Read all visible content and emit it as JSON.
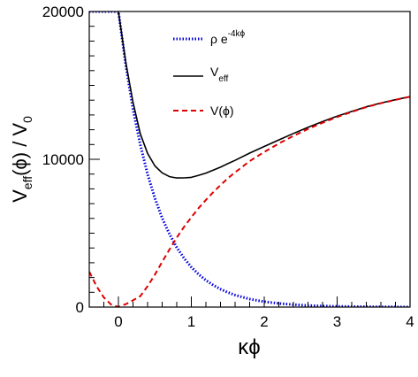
{
  "chart_data": {
    "type": "line",
    "xlabel": "κϕ",
    "ylabel": "V_eff(ϕ) / V_0",
    "xlim": [
      -0.4,
      4.0
    ],
    "ylim": [
      0,
      20000
    ],
    "x_ticks": [
      "0",
      "1",
      "2",
      "3",
      "4"
    ],
    "y_ticks": [
      "0",
      "10000",
      "20000"
    ],
    "grid": false,
    "legend_placement": "top-center",
    "series": [
      {
        "name": "ρ e^{-4kϕ}",
        "color": "#0000dd",
        "style": "dotted",
        "x": [
          -0.4,
          -0.3,
          -0.2,
          -0.1,
          0.0,
          0.1,
          0.2,
          0.3,
          0.4,
          0.5,
          0.6,
          0.7,
          0.8,
          0.9,
          1.0,
          1.1,
          1.2,
          1.3,
          1.4,
          1.5,
          1.6,
          1.8,
          2.0,
          2.2,
          2.4,
          2.6,
          2.8,
          3.0,
          3.2,
          3.4,
          3.6,
          3.8,
          4.0
        ],
        "values": [
          20000,
          20000,
          20000,
          20000,
          20000,
          16375,
          13406,
          10976,
          8987,
          7358,
          6024,
          4932,
          4038,
          3306,
          2707,
          2216,
          1814,
          1486,
          1216,
          996,
          815,
          547,
          366,
          246,
          165,
          110,
          74,
          50,
          33,
          22,
          15,
          10,
          7
        ]
      },
      {
        "name": "V_eff",
        "color": "#000000",
        "style": "solid",
        "x": [
          0.0,
          0.1,
          0.2,
          0.3,
          0.4,
          0.5,
          0.6,
          0.7,
          0.8,
          0.9,
          1.0,
          1.1,
          1.2,
          1.3,
          1.4,
          1.5,
          1.6,
          1.8,
          2.0,
          2.2,
          2.4,
          2.6,
          2.8,
          3.0,
          3.2,
          3.4,
          3.6,
          3.8,
          4.0
        ],
        "values": [
          20000,
          16570,
          13862,
          11720,
          10401,
          9553,
          9083,
          8828,
          8739,
          8740,
          8780,
          8914,
          9066,
          9261,
          9468,
          9707,
          9930,
          10421,
          10866,
          11313,
          11747,
          12163,
          12548,
          12914,
          13237,
          13552,
          13807,
          14032,
          14240
        ]
      },
      {
        "name": "V(ϕ)",
        "color": "#dd0000",
        "style": "dashed",
        "x": [
          -0.4,
          -0.3,
          -0.2,
          -0.1,
          0.0,
          0.1,
          0.2,
          0.3,
          0.4,
          0.5,
          0.6,
          0.7,
          0.8,
          0.9,
          1.0,
          1.1,
          1.2,
          1.3,
          1.4,
          1.5,
          1.6,
          1.8,
          2.0,
          2.2,
          2.4,
          2.6,
          2.8,
          3.0,
          3.2,
          3.4,
          3.6,
          3.8,
          4.0
        ],
        "values": [
          2400,
          1400,
          650,
          170,
          0,
          195,
          456,
          744,
          1414,
          2195,
          3059,
          3896,
          4701,
          5434,
          6073,
          6698,
          7252,
          7775,
          8252,
          8711,
          9115,
          9874,
          10500,
          11067,
          11582,
          12053,
          12474,
          12864,
          13204,
          13530,
          13792,
          14022,
          14233
        ]
      }
    ]
  }
}
